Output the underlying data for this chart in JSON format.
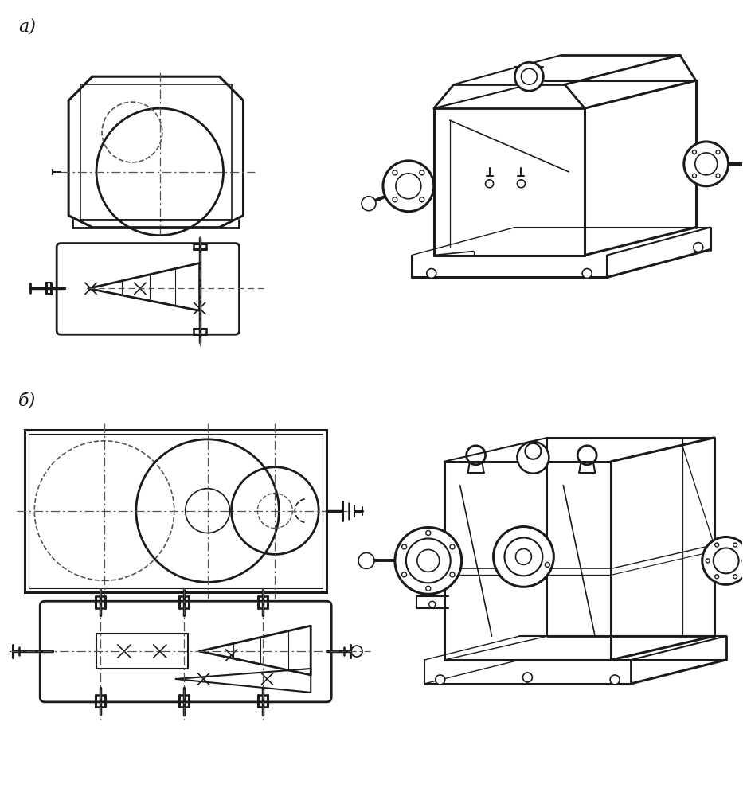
{
  "bg_color": "#ffffff",
  "line_color": "#1a1a1a",
  "dash_color": "#555555",
  "label_a": "a)",
  "label_b": "б)",
  "figsize": [
    9.33,
    10.05
  ],
  "dpi": 100
}
